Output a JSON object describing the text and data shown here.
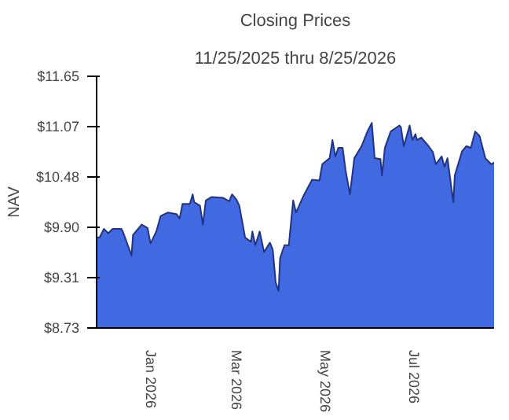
{
  "chart_data": {
    "type": "area",
    "title": "Closing Prices",
    "subtitle": "11/25/2025 thru 8/25/2026",
    "ylabel": "NAV",
    "x": [
      "2025-11-25",
      "2025-11-27",
      "2025-11-30",
      "2025-12-03",
      "2025-12-06",
      "2025-12-12",
      "2025-12-13",
      "2025-12-19",
      "2025-12-20",
      "2025-12-26",
      "2025-12-30",
      "2026-01-01",
      "2026-01-05",
      "2026-01-08",
      "2026-01-13",
      "2026-01-19",
      "2026-01-21",
      "2026-01-23",
      "2026-01-28",
      "2026-01-30",
      "2026-01-31",
      "2026-02-04",
      "2026-02-06",
      "2026-02-08",
      "2026-02-12",
      "2026-02-20",
      "2026-02-24",
      "2026-02-26",
      "2026-03-01",
      "2026-03-03",
      "2026-03-07",
      "2026-03-11",
      "2026-03-12",
      "2026-03-14",
      "2026-03-17",
      "2026-03-20",
      "2026-03-24",
      "2026-03-26",
      "2026-03-28",
      "2026-03-30",
      "2026-03-31",
      "2026-04-03",
      "2026-04-06",
      "2026-04-09",
      "2026-04-11",
      "2026-04-16",
      "2026-04-22",
      "2026-04-27",
      "2026-04-29",
      "2026-05-04",
      "2026-05-06",
      "2026-05-08",
      "2026-05-10",
      "2026-05-13",
      "2026-05-15",
      "2026-05-18",
      "2026-05-21",
      "2026-05-26",
      "2026-05-30",
      "2026-06-02",
      "2026-06-04",
      "2026-06-08",
      "2026-06-09",
      "2026-06-11",
      "2026-06-15",
      "2026-06-21",
      "2026-06-22",
      "2026-06-24",
      "2026-06-28",
      "2026-06-30",
      "2026-07-02",
      "2026-07-03",
      "2026-07-06",
      "2026-07-11",
      "2026-07-14",
      "2026-07-16",
      "2026-07-20",
      "2026-07-22",
      "2026-07-24",
      "2026-07-28",
      "2026-07-29",
      "2026-08-03",
      "2026-08-06",
      "2026-08-09",
      "2026-08-12",
      "2026-08-15",
      "2026-08-19",
      "2026-08-23",
      "2026-08-25"
    ],
    "series": [
      {
        "color": "#4169e1",
        "values": [
          9.78,
          9.78,
          9.88,
          9.83,
          9.88,
          9.88,
          9.85,
          9.57,
          9.81,
          9.93,
          9.89,
          9.71,
          9.85,
          10.03,
          10.07,
          10.05,
          10.0,
          10.17,
          10.17,
          10.28,
          10.19,
          10.15,
          9.93,
          10.21,
          10.25,
          10.24,
          10.2,
          10.28,
          10.22,
          10.15,
          9.78,
          9.73,
          9.85,
          9.69,
          9.85,
          9.61,
          9.72,
          9.64,
          9.26,
          9.16,
          9.54,
          9.69,
          9.69,
          10.21,
          10.07,
          10.26,
          10.45,
          10.44,
          10.63,
          10.7,
          10.91,
          10.72,
          10.82,
          10.82,
          10.56,
          10.28,
          10.7,
          10.84,
          11.01,
          11.11,
          10.7,
          10.69,
          10.5,
          10.82,
          11.01,
          11.08,
          11.06,
          10.84,
          11.08,
          10.91,
          10.98,
          10.91,
          10.94,
          10.84,
          10.77,
          10.63,
          10.72,
          10.6,
          10.7,
          10.19,
          10.5,
          10.78,
          10.84,
          10.82,
          11.01,
          10.96,
          10.7,
          10.63,
          10.65
        ]
      }
    ],
    "xlim": [
      "2025-11-25",
      "2026-08-25"
    ],
    "xticks": [
      {
        "value": "2026-01-01",
        "label": "Jan  2026"
      },
      {
        "value": "2026-03-01",
        "label": "Mar  2026"
      },
      {
        "value": "2026-05-01",
        "label": "May  2026"
      },
      {
        "value": "2026-07-01",
        "label": "Jul  2026"
      }
    ],
    "ylim": [
      8.73,
      11.65
    ],
    "yticks": [
      {
        "value": 8.73,
        "label": "$8.73"
      },
      {
        "value": 9.31,
        "label": "$9.31"
      },
      {
        "value": 9.9,
        "label": "$9.90"
      },
      {
        "value": 10.48,
        "label": "$10.48"
      },
      {
        "value": 11.07,
        "label": "$11.07"
      },
      {
        "value": 11.65,
        "label": "$11.65"
      }
    ],
    "grid": false
  }
}
